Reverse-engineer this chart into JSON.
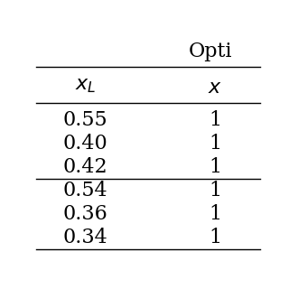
{
  "title": "Opti",
  "col1_header": "$x_{L}$",
  "col2_header": "$x_{\\!}$",
  "col1_values": [
    "0.55",
    "0.40",
    "0.42",
    "0.54",
    "0.36",
    "0.34"
  ],
  "col2_values": [
    "1",
    "1",
    "1",
    "1",
    "1",
    "1"
  ],
  "background_color": "#ffffff",
  "line_color": "#000000",
  "text_color": "#000000",
  "title_fontsize": 16,
  "header_fontsize": 16,
  "data_fontsize": 16
}
